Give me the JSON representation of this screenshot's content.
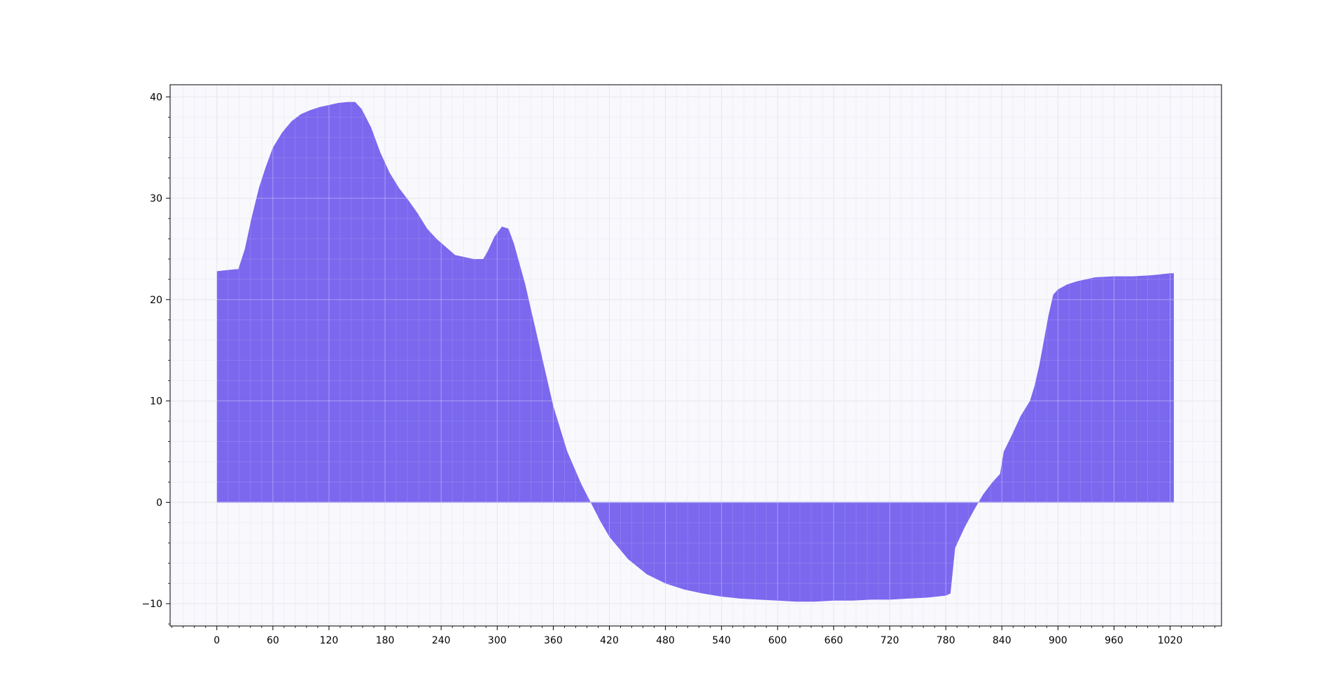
{
  "chart_data": {
    "type": "area",
    "title": "",
    "xlabel": "",
    "ylabel": "",
    "xlim": [
      -50,
      1075
    ],
    "ylim": [
      -12.2,
      41.2
    ],
    "grid": true,
    "minor_grid": true,
    "x_ticks": [
      0,
      60,
      120,
      180,
      240,
      300,
      360,
      420,
      480,
      540,
      600,
      660,
      720,
      780,
      840,
      900,
      960,
      1020
    ],
    "y_ticks": [
      -10,
      0,
      10,
      20,
      30,
      40
    ],
    "x_tick_labels": [
      "0",
      "60",
      "120",
      "180",
      "240",
      "300",
      "360",
      "420",
      "480",
      "540",
      "600",
      "660",
      "720",
      "780",
      "840",
      "900",
      "960",
      "1020"
    ],
    "y_tick_labels": [
      "−10",
      "0",
      "10",
      "20",
      "30",
      "40"
    ],
    "series": [
      {
        "fill_color": "#7b68ee",
        "x": [
          0,
          10,
          20,
          23,
          30,
          37,
          45,
          52,
          60,
          70,
          80,
          90,
          100,
          110,
          120,
          130,
          140,
          148,
          155,
          165,
          175,
          185,
          195,
          205,
          215,
          225,
          235,
          245,
          255,
          265,
          275,
          285,
          290,
          297,
          305,
          312,
          318,
          330,
          345,
          360,
          375,
          390,
          400,
          410,
          420,
          440,
          460,
          480,
          500,
          520,
          540,
          560,
          580,
          600,
          620,
          640,
          660,
          680,
          700,
          720,
          740,
          760,
          780,
          785,
          790,
          800,
          810,
          820,
          830,
          838,
          842,
          850,
          860,
          870,
          875,
          880,
          885,
          890,
          895,
          900,
          910,
          920,
          930,
          940,
          960,
          980,
          1000,
          1010,
          1020,
          1024
        ],
        "y": [
          22.8,
          22.9,
          23.0,
          23.0,
          25.0,
          28.0,
          31.0,
          33.0,
          35.0,
          36.5,
          37.6,
          38.3,
          38.7,
          39.0,
          39.2,
          39.4,
          39.5,
          39.5,
          38.8,
          37.0,
          34.5,
          32.5,
          31.0,
          29.8,
          28.5,
          27.0,
          26.0,
          25.2,
          24.4,
          24.2,
          24.0,
          24.0,
          24.8,
          26.2,
          27.2,
          27.0,
          25.5,
          21.5,
          15.5,
          9.5,
          5.0,
          1.8,
          0.0,
          -1.8,
          -3.4,
          -5.6,
          -7.1,
          -8.0,
          -8.6,
          -9.0,
          -9.3,
          -9.5,
          -9.6,
          -9.7,
          -9.8,
          -9.8,
          -9.7,
          -9.7,
          -9.6,
          -9.6,
          -9.5,
          -9.4,
          -9.2,
          -9.0,
          -4.5,
          -2.5,
          -0.8,
          0.8,
          2.0,
          2.8,
          5.0,
          6.5,
          8.5,
          10.0,
          11.5,
          13.5,
          16.0,
          18.5,
          20.5,
          21.0,
          21.5,
          21.8,
          22.0,
          22.2,
          22.3,
          22.3,
          22.4,
          22.5,
          22.6,
          22.6
        ]
      }
    ]
  }
}
